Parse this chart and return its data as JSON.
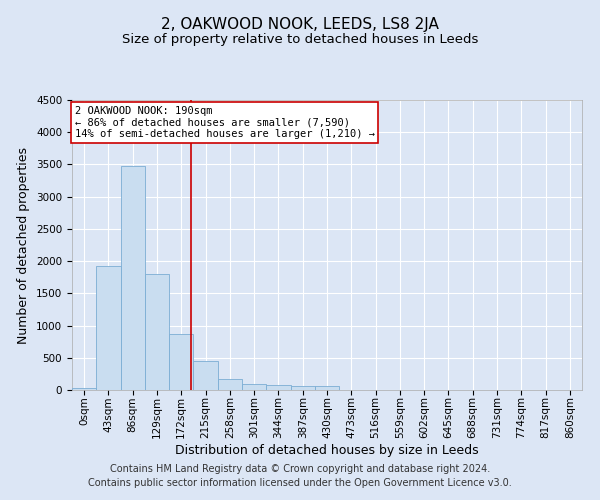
{
  "title": "2, OAKWOOD NOOK, LEEDS, LS8 2JA",
  "subtitle": "Size of property relative to detached houses in Leeds",
  "xlabel": "Distribution of detached houses by size in Leeds",
  "ylabel": "Number of detached properties",
  "bar_color": "#c9ddf0",
  "bar_edge_color": "#7badd4",
  "categories": [
    "0sqm",
    "43sqm",
    "86sqm",
    "129sqm",
    "172sqm",
    "215sqm",
    "258sqm",
    "301sqm",
    "344sqm",
    "387sqm",
    "430sqm",
    "473sqm",
    "516sqm",
    "559sqm",
    "602sqm",
    "645sqm",
    "688sqm",
    "731sqm",
    "774sqm",
    "817sqm",
    "860sqm"
  ],
  "values": [
    30,
    1920,
    3480,
    1800,
    870,
    450,
    170,
    100,
    80,
    65,
    55,
    0,
    0,
    0,
    0,
    0,
    0,
    0,
    0,
    0,
    0
  ],
  "ylim": [
    0,
    4500
  ],
  "yticks": [
    0,
    500,
    1000,
    1500,
    2000,
    2500,
    3000,
    3500,
    4000,
    4500
  ],
  "vline_color": "#cc0000",
  "vline_pos": 4.42,
  "annotation_text": "2 OAKWOOD NOOK: 190sqm\n← 86% of detached houses are smaller (7,590)\n14% of semi-detached houses are larger (1,210) →",
  "annotation_box_color": "#ffffff",
  "annotation_box_edge_color": "#cc0000",
  "footer_line1": "Contains HM Land Registry data © Crown copyright and database right 2024.",
  "footer_line2": "Contains public sector information licensed under the Open Government Licence v3.0.",
  "background_color": "#dce6f5",
  "plot_background_color": "#dce6f5",
  "grid_color": "#ffffff",
  "title_fontsize": 11,
  "subtitle_fontsize": 9.5,
  "label_fontsize": 9,
  "tick_fontsize": 7.5,
  "footer_fontsize": 7
}
